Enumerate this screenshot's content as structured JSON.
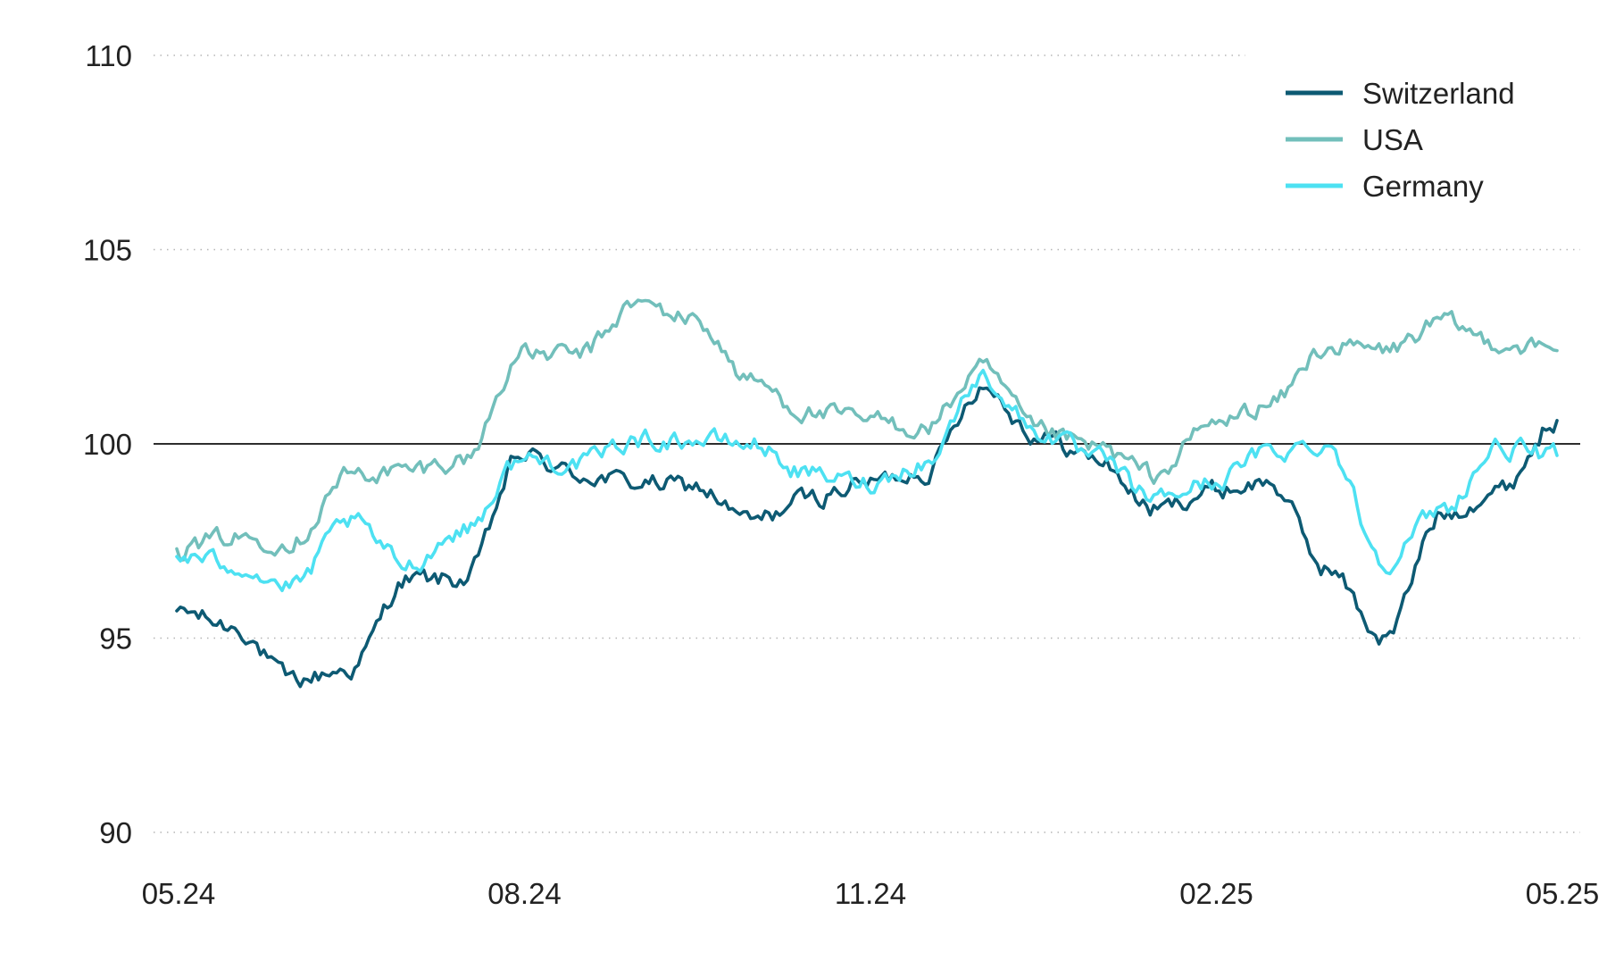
{
  "chart_data": {
    "type": "line",
    "title": "",
    "xlabel": "",
    "ylabel": "",
    "x_ticks": [
      "05.24",
      "08.24",
      "11.24",
      "02.25",
      "05.25"
    ],
    "y_ticks": [
      90,
      95,
      100,
      105,
      110
    ],
    "ylim": [
      90,
      110
    ],
    "xlim": [
      "2024-05",
      "2025-05"
    ],
    "reference_line": 100,
    "grid": "horizontal dotted",
    "legend_position": "top-right",
    "x": [
      "2024-05",
      "2024-05-15",
      "2024-06",
      "2024-06-15",
      "2024-07",
      "2024-07-15",
      "2024-08",
      "2024-08-15",
      "2024-09",
      "2024-09-15",
      "2024-10",
      "2024-10-15",
      "2024-11",
      "2024-11-15",
      "2024-12",
      "2024-12-15",
      "2025-01",
      "2025-01-15",
      "2025-02",
      "2025-02-15",
      "2025-03",
      "2025-03-15",
      "2025-04",
      "2025-04-15",
      "2025-05"
    ],
    "series": [
      {
        "name": "Switzerland",
        "color": "#0d5a73",
        "values": [
          95.7,
          95.3,
          93.9,
          94.2,
          96.5,
          96.5,
          99.7,
          99.2,
          99.0,
          98.9,
          98.0,
          98.6,
          99.0,
          99.3,
          101.5,
          100.2,
          99.6,
          98.3,
          98.8,
          99.0,
          96.8,
          95.0,
          98.2,
          98.8,
          100.6
        ]
      },
      {
        "name": "USA",
        "color": "#72bfbb",
        "values": [
          97.3,
          97.6,
          97.5,
          99.2,
          99.3,
          99.6,
          102.3,
          102.3,
          103.6,
          103.2,
          101.6,
          100.8,
          100.6,
          100.4,
          101.9,
          100.3,
          99.9,
          99.2,
          100.5,
          101.0,
          102.5,
          102.4,
          103.1,
          102.6,
          102.4
        ]
      },
      {
        "name": "Germany",
        "color": "#4de1f2",
        "values": [
          97.1,
          96.9,
          96.3,
          98.0,
          96.9,
          97.8,
          99.6,
          99.5,
          100.1,
          100.1,
          100.0,
          99.2,
          99.0,
          99.5,
          101.7,
          100.3,
          99.6,
          98.6,
          99.0,
          99.8,
          100.0,
          97.0,
          98.3,
          99.9,
          99.7
        ]
      }
    ]
  }
}
